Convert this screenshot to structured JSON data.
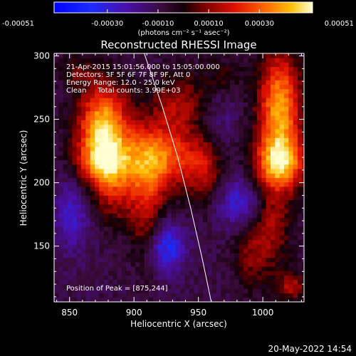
{
  "chart_data": {
    "type": "heatmap",
    "title": "Reconstructed RHESSI Image",
    "xlabel": "Heliocentric X (arcsec)",
    "ylabel": "Heliocentric Y (arcsec)",
    "xlim": [
      838,
      1032
    ],
    "ylim": [
      106,
      302
    ],
    "xticks": [
      850,
      900,
      950,
      1000
    ],
    "yticks": [
      150,
      200,
      250,
      300
    ],
    "colorbar": {
      "range": [
        -0.00051,
        0.00051
      ],
      "tick_values": [
        -0.00051,
        -0.0003,
        -0.0001,
        0.0001,
        0.0003,
        0.00051
      ],
      "tick_labels": [
        "-0.00051",
        "-0.00030",
        "-0.00010",
        "0.00010",
        "0.00030",
        "0.00051"
      ],
      "unit_label": "(photons cm⁻² s⁻¹ asec⁻²)"
    },
    "annotations": [
      "21-Apr-2015 15:01:56.000 to 15:05:00.000",
      "Detectors: 3F 5F 6F 7F 8F 9F, Att 0",
      "Energy Range: 12.0 - 25.0 keV",
      "Clean     Total counts: 3.99E+03"
    ],
    "peak_label": "Position of Peak = [875,244]",
    "peak": [
      875,
      244
    ],
    "limb_curve": [
      [
        908,
        302
      ],
      [
        922,
        260
      ],
      [
        934,
        220
      ],
      [
        944,
        180
      ],
      [
        953,
        140
      ],
      [
        960,
        106
      ]
    ],
    "sources": [
      {
        "x": 876,
        "y": 244,
        "amp": 1.0,
        "sx": 14,
        "sy": 24
      },
      {
        "x": 875,
        "y": 215,
        "amp": 0.55,
        "sx": 14,
        "sy": 14
      },
      {
        "x": 885,
        "y": 190,
        "amp": 0.35,
        "sx": 12,
        "sy": 18
      },
      {
        "x": 918,
        "y": 220,
        "amp": 0.8,
        "sx": 22,
        "sy": 18
      },
      {
        "x": 938,
        "y": 262,
        "amp": 0.45,
        "sx": 18,
        "sy": 18
      },
      {
        "x": 910,
        "y": 182,
        "amp": 0.45,
        "sx": 10,
        "sy": 30
      },
      {
        "x": 955,
        "y": 212,
        "amp": 0.4,
        "sx": 10,
        "sy": 20
      },
      {
        "x": 1013,
        "y": 258,
        "amp": 0.95,
        "sx": 12,
        "sy": 32
      },
      {
        "x": 1015,
        "y": 216,
        "amp": 0.75,
        "sx": 14,
        "sy": 14
      },
      {
        "x": 1005,
        "y": 172,
        "amp": 0.45,
        "sx": 12,
        "sy": 28
      },
      {
        "x": 1022,
        "y": 118,
        "amp": 0.45,
        "sx": 8,
        "sy": 8
      },
      {
        "x": 990,
        "y": 140,
        "amp": 0.25,
        "sx": 10,
        "sy": 18
      },
      {
        "x": 855,
        "y": 288,
        "amp": 0.25,
        "sx": 10,
        "sy": 8
      },
      {
        "x": 970,
        "y": 285,
        "amp": 0.2,
        "sx": 10,
        "sy": 10
      },
      {
        "x": 925,
        "y": 150,
        "amp": -0.55,
        "sx": 10,
        "sy": 14
      },
      {
        "x": 985,
        "y": 185,
        "amp": -0.45,
        "sx": 14,
        "sy": 14
      },
      {
        "x": 960,
        "y": 250,
        "amp": -0.25,
        "sx": 14,
        "sy": 18
      },
      {
        "x": 852,
        "y": 175,
        "amp": -0.35,
        "sx": 10,
        "sy": 20
      }
    ]
  },
  "footer": {
    "timestamp": "20-May-2022 14:54"
  }
}
